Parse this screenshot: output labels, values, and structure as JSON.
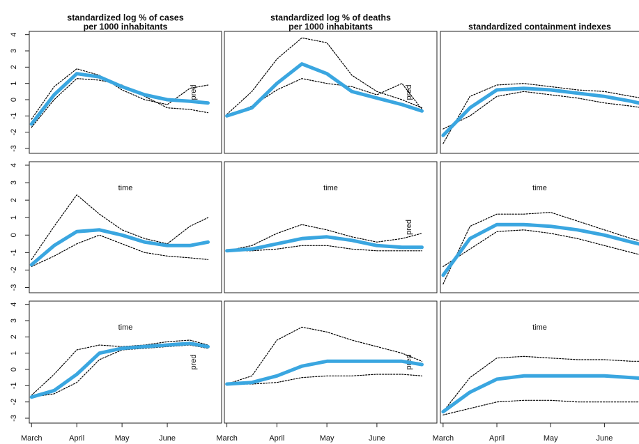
{
  "chart_data": [
    {
      "type": "line",
      "title": [
        "standardized log % of cases",
        "per 1000 inhabitants"
      ],
      "annotations": [
        "pred"
      ],
      "x": [
        0,
        0.5,
        1,
        1.5,
        2,
        2.5,
        3,
        3.5,
        3.9
      ],
      "xlim": [
        -0.05,
        4.2
      ],
      "ylim": [
        -3.3,
        4.2
      ],
      "yticks": [
        -3,
        -2,
        -1,
        0,
        1,
        2,
        3,
        4
      ],
      "series": [
        {
          "color": "#000000",
          "style": "dotted",
          "values": [
            -1.2,
            0.8,
            1.9,
            1.5,
            0.6,
            0,
            -0.3,
            0.7,
            0.9
          ]
        },
        {
          "color": "#000000",
          "style": "dotted",
          "values": [
            -1.7,
            0,
            1.3,
            1.2,
            0.9,
            0.2,
            -0.5,
            -0.6,
            -0.8
          ]
        },
        {
          "color": "#3aa6e0",
          "style": "solid",
          "values": [
            -1.5,
            0.3,
            1.6,
            1.4,
            0.8,
            0.3,
            0,
            -0.1,
            -0.2
          ]
        }
      ]
    },
    {
      "type": "line",
      "title": [
        "standardized log % of deaths",
        "per 1000 inhabitants"
      ],
      "annotations": [
        "pred"
      ],
      "x": [
        0,
        0.5,
        1,
        1.5,
        2,
        2.5,
        3,
        3.5,
        3.9
      ],
      "xlim": [
        -0.05,
        4.2
      ],
      "ylim": [
        -3.3,
        4.2
      ],
      "series": [
        {
          "color": "#000000",
          "style": "dotted",
          "values": [
            -0.9,
            0.5,
            2.5,
            3.8,
            3.5,
            1.5,
            0.5,
            0,
            -0.5
          ]
        },
        {
          "color": "#000000",
          "style": "dotted",
          "values": [
            -1.0,
            -0.4,
            0.6,
            1.3,
            1.0,
            0.8,
            0.3,
            1.0,
            -0.6
          ]
        },
        {
          "color": "#3aa6e0",
          "style": "solid",
          "values": [
            -1.0,
            -0.5,
            1.0,
            2.2,
            1.6,
            0.5,
            0.1,
            -0.3,
            -0.7
          ]
        }
      ]
    },
    {
      "type": "line",
      "title": [
        "standardized containment indexes"
      ],
      "annotations": [],
      "x": [
        0,
        0.5,
        1,
        1.5,
        2,
        2.5,
        3,
        3.5,
        3.9
      ],
      "xlim": [
        -0.05,
        4.2
      ],
      "ylim": [
        -3.3,
        4.2
      ],
      "series": [
        {
          "color": "#000000",
          "style": "dotted",
          "values": [
            -2.7,
            0.2,
            0.9,
            1.0,
            0.8,
            0.6,
            0.5,
            0.2,
            0
          ]
        },
        {
          "color": "#000000",
          "style": "dotted",
          "values": [
            -1.8,
            -1.0,
            0.2,
            0.5,
            0.3,
            0.1,
            -0.2,
            -0.4,
            -0.6
          ]
        },
        {
          "color": "#3aa6e0",
          "style": "solid",
          "values": [
            -2.2,
            -0.5,
            0.6,
            0.7,
            0.6,
            0.4,
            0.2,
            -0.1,
            -0.4
          ]
        }
      ]
    },
    {
      "type": "line",
      "annotations": [
        "time"
      ],
      "x": [
        0,
        0.5,
        1,
        1.5,
        2,
        2.5,
        3,
        3.5,
        3.9
      ],
      "xlim": [
        -0.05,
        4.2
      ],
      "ylim": [
        -3.3,
        4.2
      ],
      "yticks": [
        -3,
        -2,
        -1,
        0,
        1,
        2,
        3,
        4
      ],
      "series": [
        {
          "color": "#000000",
          "style": "dotted",
          "values": [
            -1.4,
            0.5,
            2.3,
            1.2,
            0.3,
            -0.2,
            -0.5,
            0.5,
            1.0
          ]
        },
        {
          "color": "#000000",
          "style": "dotted",
          "values": [
            -1.8,
            -1.2,
            -0.5,
            0,
            -0.5,
            -1.0,
            -1.2,
            -1.3,
            -1.4
          ]
        },
        {
          "color": "#3aa6e0",
          "style": "solid",
          "values": [
            -1.7,
            -0.6,
            0.2,
            0.3,
            0,
            -0.4,
            -0.6,
            -0.6,
            -0.4
          ]
        }
      ]
    },
    {
      "type": "line",
      "annotations": [
        "time",
        "pred"
      ],
      "x": [
        0,
        0.5,
        1,
        1.5,
        2,
        2.5,
        3,
        3.5,
        3.9
      ],
      "xlim": [
        -0.05,
        4.2
      ],
      "ylim": [
        -3.3,
        4.2
      ],
      "series": [
        {
          "color": "#000000",
          "style": "dotted",
          "values": [
            -0.9,
            -0.6,
            0.1,
            0.6,
            0.3,
            -0.1,
            -0.4,
            -0.2,
            0.1
          ]
        },
        {
          "color": "#000000",
          "style": "dotted",
          "values": [
            -0.9,
            -0.9,
            -0.8,
            -0.6,
            -0.6,
            -0.8,
            -0.9,
            -0.9,
            -0.9
          ]
        },
        {
          "color": "#3aa6e0",
          "style": "solid",
          "values": [
            -0.9,
            -0.8,
            -0.5,
            -0.2,
            -0.1,
            -0.3,
            -0.6,
            -0.7,
            -0.7
          ]
        }
      ]
    },
    {
      "type": "line",
      "annotations": [
        "time"
      ],
      "x": [
        0,
        0.5,
        1,
        1.5,
        2,
        2.5,
        3,
        3.5,
        3.9
      ],
      "xlim": [
        -0.05,
        4.2
      ],
      "ylim": [
        -3.3,
        4.2
      ],
      "series": [
        {
          "color": "#000000",
          "style": "dotted",
          "values": [
            -2.8,
            0.5,
            1.2,
            1.2,
            1.3,
            0.8,
            0.3,
            -0.2,
            -0.5
          ]
        },
        {
          "color": "#000000",
          "style": "dotted",
          "values": [
            -1.8,
            -0.8,
            0.2,
            0.3,
            0.1,
            -0.2,
            -0.6,
            -1.0,
            -1.3
          ]
        },
        {
          "color": "#3aa6e0",
          "style": "solid",
          "values": [
            -2.3,
            -0.2,
            0.6,
            0.6,
            0.5,
            0.3,
            0,
            -0.4,
            -0.7
          ]
        }
      ]
    },
    {
      "type": "line",
      "annotations": [
        "time",
        "pred"
      ],
      "x": [
        0,
        0.5,
        1,
        1.5,
        2,
        2.5,
        3,
        3.5,
        3.9
      ],
      "xlim": [
        -0.05,
        4.2
      ],
      "ylim": [
        -3.3,
        4.2
      ],
      "yticks": [
        -3,
        -2,
        -1,
        0,
        1,
        2,
        3,
        4
      ],
      "xticks": [
        {
          "value": 0,
          "label": "March"
        },
        {
          "value": 1,
          "label": "April"
        },
        {
          "value": 2,
          "label": "May"
        },
        {
          "value": 3,
          "label": "June"
        }
      ],
      "series": [
        {
          "color": "#000000",
          "style": "dotted",
          "values": [
            -1.6,
            -0.3,
            1.2,
            1.5,
            1.4,
            1.5,
            1.7,
            1.8,
            1.5
          ]
        },
        {
          "color": "#000000",
          "style": "dotted",
          "values": [
            -1.7,
            -1.5,
            -0.8,
            0.6,
            1.2,
            1.3,
            1.4,
            1.5,
            1.3
          ]
        },
        {
          "color": "#3aa6e0",
          "style": "solid",
          "values": [
            -1.7,
            -1.3,
            -0.3,
            1.0,
            1.3,
            1.4,
            1.5,
            1.6,
            1.4
          ]
        }
      ]
    },
    {
      "type": "line",
      "annotations": [
        "pred"
      ],
      "x": [
        0,
        0.5,
        1,
        1.5,
        2,
        2.5,
        3,
        3.5,
        3.9
      ],
      "xlim": [
        -0.05,
        4.2
      ],
      "ylim": [
        -3.3,
        4.2
      ],
      "xticks": [
        {
          "value": 0,
          "label": "March"
        },
        {
          "value": 1,
          "label": "April"
        },
        {
          "value": 2,
          "label": "May"
        },
        {
          "value": 3,
          "label": "June"
        }
      ],
      "series": [
        {
          "color": "#000000",
          "style": "dotted",
          "values": [
            -0.9,
            -0.4,
            1.8,
            2.6,
            2.3,
            1.8,
            1.4,
            1.0,
            0.5
          ]
        },
        {
          "color": "#000000",
          "style": "dotted",
          "values": [
            -0.9,
            -0.9,
            -0.8,
            -0.5,
            -0.4,
            -0.4,
            -0.3,
            -0.3,
            -0.4
          ]
        },
        {
          "color": "#3aa6e0",
          "style": "solid",
          "values": [
            -0.9,
            -0.8,
            -0.4,
            0.2,
            0.5,
            0.5,
            0.5,
            0.5,
            0.3
          ]
        }
      ]
    },
    {
      "type": "line",
      "annotations": [
        "time"
      ],
      "x": [
        0,
        0.5,
        1,
        1.5,
        2,
        2.5,
        3,
        3.5,
        3.9
      ],
      "xlim": [
        -0.05,
        4.2
      ],
      "ylim": [
        -3.3,
        4.2
      ],
      "xticks": [
        {
          "value": 0,
          "label": "March"
        },
        {
          "value": 1,
          "label": "April"
        },
        {
          "value": 2,
          "label": "May"
        },
        {
          "value": 3,
          "label": "June"
        }
      ],
      "series": [
        {
          "color": "#000000",
          "style": "dotted",
          "values": [
            -2.6,
            -0.5,
            0.7,
            0.8,
            0.7,
            0.6,
            0.6,
            0.5,
            0.5
          ]
        },
        {
          "color": "#000000",
          "style": "dotted",
          "values": [
            -2.8,
            -2.4,
            -2.0,
            -1.9,
            -1.9,
            -2.0,
            -2.0,
            -2.0,
            -2.0
          ]
        },
        {
          "color": "#3aa6e0",
          "style": "solid",
          "values": [
            -2.6,
            -1.4,
            -0.6,
            -0.4,
            -0.4,
            -0.4,
            -0.4,
            -0.5,
            -0.6
          ]
        }
      ]
    }
  ]
}
